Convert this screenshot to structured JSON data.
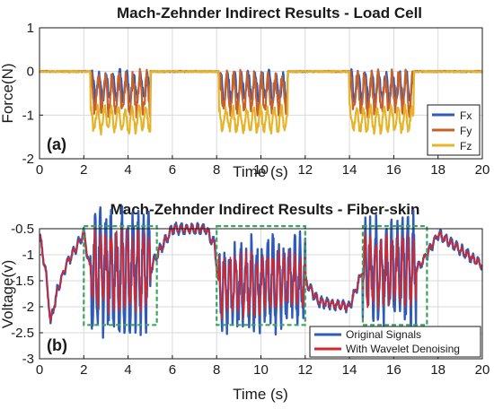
{
  "chart_data": [
    {
      "type": "line",
      "panel_label": "(a)",
      "title": "Mach-Zehnder Indirect Results - Load Cell",
      "xlabel": "Time (s)",
      "ylabel": "Force(N)",
      "xlim": [
        0,
        20
      ],
      "ylim": [
        -2,
        1
      ],
      "xticks": [
        "0",
        "2",
        "4",
        "6",
        "8",
        "10",
        "12",
        "14",
        "16",
        "18",
        "20"
      ],
      "yticks": [
        "1",
        "0",
        "-1",
        "-2"
      ],
      "grid": true,
      "legend_position": "bottom-right",
      "press_windows": [
        [
          2.3,
          5.0
        ],
        [
          8.1,
          11.2
        ],
        [
          14.0,
          16.9
        ]
      ],
      "series": [
        {
          "name": "Fx",
          "color": "#2E5BBA",
          "baseline": 0.0,
          "pressed_mean": -0.35,
          "pressed_amp": 0.3
        },
        {
          "name": "Fy",
          "color": "#C8602A",
          "baseline": 0.0,
          "pressed_mean": -0.5,
          "pressed_amp": 0.4
        },
        {
          "name": "Fz",
          "color": "#E6B42A",
          "baseline": 0.0,
          "pressed_mean": -1.1,
          "pressed_amp": 0.25
        }
      ]
    },
    {
      "type": "line",
      "panel_label": "(b)",
      "title": "Mach-Zehnder Indirect Results - Fiber-skin",
      "xlabel": "Time (s)",
      "ylabel": "Voltage(v)",
      "xlim": [
        0,
        20
      ],
      "ylim": [
        -3,
        -0.5
      ],
      "xticks": [
        "0",
        "2",
        "4",
        "6",
        "8",
        "10",
        "12",
        "14",
        "16",
        "18",
        "20"
      ],
      "yticks": [
        "-0.5",
        "-1",
        "-1.5",
        "-2",
        "-2.5",
        "-3"
      ],
      "grid": true,
      "legend_position": "bottom-right",
      "highlight_boxes": [
        {
          "x": [
            2.0,
            5.3
          ],
          "y": [
            -2.35,
            -0.45
          ]
        },
        {
          "x": [
            8.0,
            12.0
          ],
          "y": [
            -2.35,
            -0.45
          ]
        },
        {
          "x": [
            14.6,
            17.5
          ],
          "y": [
            -2.35,
            -0.45
          ]
        }
      ],
      "box_color": "#3BA55C",
      "series": [
        {
          "name": "Original Signals",
          "color": "#2E5BBA"
        },
        {
          "name": "With Wavelet Denoising",
          "color": "#D8252A"
        }
      ],
      "signal_profile": {
        "x": [
          0,
          0.3,
          0.5,
          0.8,
          1.2,
          2.0,
          2.3,
          5.0,
          5.3,
          6.0,
          7.5,
          7.9,
          8.1,
          12.0,
          12.6,
          14.0,
          14.6,
          17.0,
          17.5,
          18.0,
          19.0,
          20.0
        ],
        "y": [
          -0.6,
          -1.4,
          -2.3,
          -1.7,
          -1.2,
          -0.6,
          -1.3,
          -1.3,
          -1.0,
          -0.5,
          -0.5,
          -0.8,
          -1.6,
          -1.5,
          -1.9,
          -2.0,
          -1.3,
          -1.3,
          -1.0,
          -0.6,
          -0.9,
          -1.2
        ]
      },
      "active_windows": [
        [
          2.3,
          5.0,
          0.85
        ],
        [
          8.1,
          12.0,
          0.65
        ],
        [
          14.6,
          17.0,
          0.75
        ]
      ]
    }
  ]
}
